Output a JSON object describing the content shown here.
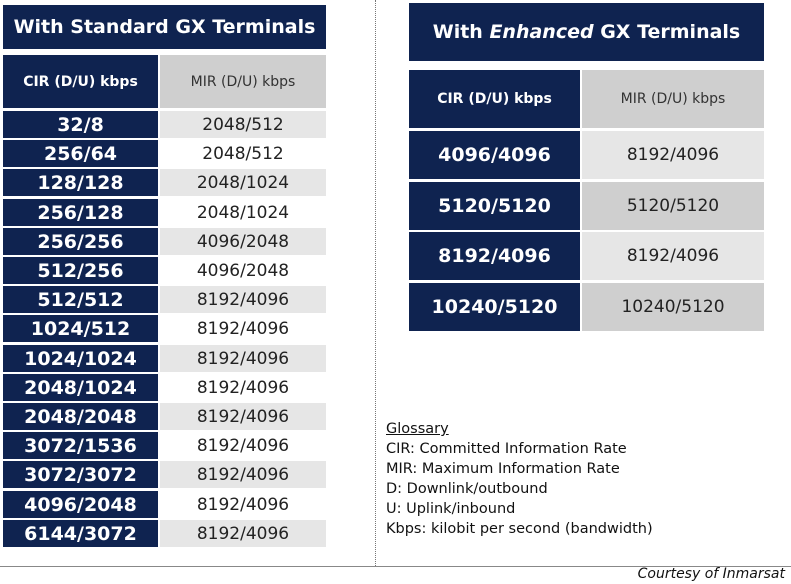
{
  "standard": {
    "title": "With Standard GX Terminals",
    "header": {
      "cir": "CIR (D/U) kbps",
      "mir": "MIR (D/U) kbps"
    },
    "rows": [
      {
        "cir": "32/8",
        "mir": "2048/512"
      },
      {
        "cir": "256/64",
        "mir": "2048/512"
      },
      {
        "cir": "128/128",
        "mir": "2048/1024"
      },
      {
        "cir": "256/128",
        "mir": "2048/1024"
      },
      {
        "cir": "256/256",
        "mir": "4096/2048"
      },
      {
        "cir": "512/256",
        "mir": "4096/2048"
      },
      {
        "cir": "512/512",
        "mir": "8192/4096"
      },
      {
        "cir": "1024/512",
        "mir": "8192/4096"
      },
      {
        "cir": "1024/1024",
        "mir": "8192/4096"
      },
      {
        "cir": "2048/1024",
        "mir": "8192/4096"
      },
      {
        "cir": "2048/2048",
        "mir": "8192/4096"
      },
      {
        "cir": "3072/1536",
        "mir": "8192/4096"
      },
      {
        "cir": "3072/3072",
        "mir": "8192/4096"
      },
      {
        "cir": "4096/2048",
        "mir": "8192/4096"
      },
      {
        "cir": "6144/3072",
        "mir": "8192/4096"
      }
    ]
  },
  "enhanced": {
    "title_prefix": "With ",
    "title_emphasis": "Enhanced",
    "title_suffix": " GX Terminals",
    "header": {
      "cir": "CIR (D/U) kbps",
      "mir": "MIR (D/U) kbps"
    },
    "rows": [
      {
        "cir": "4096/4096",
        "mir": "8192/4096"
      },
      {
        "cir": "5120/5120",
        "mir": "5120/5120"
      },
      {
        "cir": "8192/4096",
        "mir": "8192/4096"
      },
      {
        "cir": "10240/5120",
        "mir": "10240/5120"
      }
    ]
  },
  "glossary": {
    "title": "Glossary",
    "items": [
      "CIR: Committed Information Rate",
      "MIR: Maximum Information Rate",
      "D: Downlink/outbound",
      "U: Uplink/inbound",
      "Kbps: kilobit per second (bandwidth)"
    ]
  },
  "footer": {
    "courtesy": "Courtesy of Inmarsat"
  },
  "colors": {
    "navy": "#0f2350",
    "gray": "#cfcfcf",
    "light_gray": "#e6e6e6"
  }
}
